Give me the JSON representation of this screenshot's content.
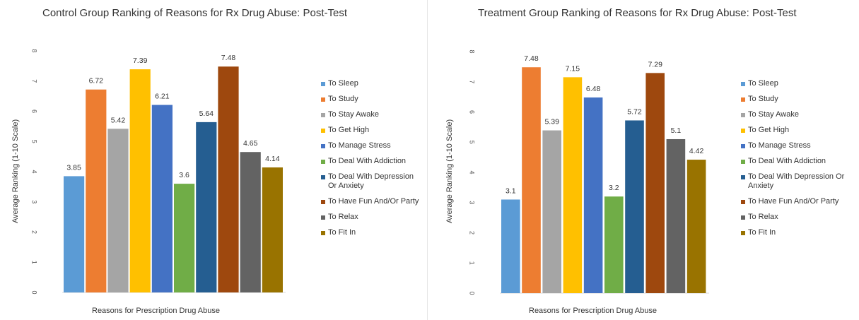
{
  "chart_data": [
    {
      "type": "bar",
      "title": "Control Group Ranking of Reasons for Rx Drug Abuse: Post-Test",
      "xlabel": "Reasons for Prescription Drug Abuse",
      "ylabel": "Average Ranking (1-10 Scale)",
      "ylim": [
        0,
        8
      ],
      "yticks": [
        "0",
        "1",
        "2",
        "3",
        "4",
        "5",
        "6",
        "7",
        "8"
      ],
      "grid": false,
      "legend_position": "right",
      "series": [
        {
          "name": "To Sleep",
          "value": 3.85,
          "label": "3.85",
          "color": "#5b9bd5"
        },
        {
          "name": "To Study",
          "value": 6.72,
          "label": "6.72",
          "color": "#ed7d31"
        },
        {
          "name": "To Stay Awake",
          "value": 5.42,
          "label": "5.42",
          "color": "#a5a5a5"
        },
        {
          "name": "To Get High",
          "value": 7.39,
          "label": "7.39",
          "color": "#ffc000"
        },
        {
          "name": "To Manage Stress",
          "value": 6.21,
          "label": "6.21",
          "color": "#4472c4"
        },
        {
          "name": "To Deal With Addiction",
          "value": 3.6,
          "label": "3.6",
          "color": "#70ad47"
        },
        {
          "name": "To Deal With Depression Or Anxiety",
          "value": 5.64,
          "label": "5.64",
          "color": "#255e91"
        },
        {
          "name": "To Have Fun And/Or Party",
          "value": 7.48,
          "label": "7.48",
          "color": "#9e480e"
        },
        {
          "name": "To Relax",
          "value": 4.65,
          "label": "4.65",
          "color": "#636363"
        },
        {
          "name": "To Fit In",
          "value": 4.14,
          "label": "4.14",
          "color": "#997300"
        }
      ]
    },
    {
      "type": "bar",
      "title": "Treatment Group Ranking of Reasons for Rx Drug Abuse: Post-Test",
      "xlabel": "Reasons for Prescription Drug Abuse",
      "ylabel": "Average Ranking (1-10 Scale)",
      "ylim": [
        0,
        8
      ],
      "yticks": [
        "0",
        "1",
        "2",
        "3",
        "4",
        "5",
        "6",
        "7",
        "8"
      ],
      "grid": false,
      "legend_position": "right",
      "series": [
        {
          "name": "To Sleep",
          "value": 3.1,
          "label": "3.1",
          "color": "#5b9bd5"
        },
        {
          "name": "To Study",
          "value": 7.48,
          "label": "7.48",
          "color": "#ed7d31"
        },
        {
          "name": "To Stay Awake",
          "value": 5.39,
          "label": "5.39",
          "color": "#a5a5a5"
        },
        {
          "name": "To Get High",
          "value": 7.15,
          "label": "7.15",
          "color": "#ffc000"
        },
        {
          "name": "To Manage Stress",
          "value": 6.48,
          "label": "6.48",
          "color": "#4472c4"
        },
        {
          "name": "To Deal With Addiction",
          "value": 3.2,
          "label": "3.2",
          "color": "#70ad47"
        },
        {
          "name": "To Deal With Depression Or Anxiety",
          "value": 5.72,
          "label": "5.72",
          "color": "#255e91"
        },
        {
          "name": "To Have Fun And/Or Party",
          "value": 7.29,
          "label": "7.29",
          "color": "#9e480e"
        },
        {
          "name": "To Relax",
          "value": 5.1,
          "label": "5.1",
          "color": "#636363"
        },
        {
          "name": "To Fit In",
          "value": 4.42,
          "label": "4.42",
          "color": "#997300"
        }
      ]
    }
  ]
}
